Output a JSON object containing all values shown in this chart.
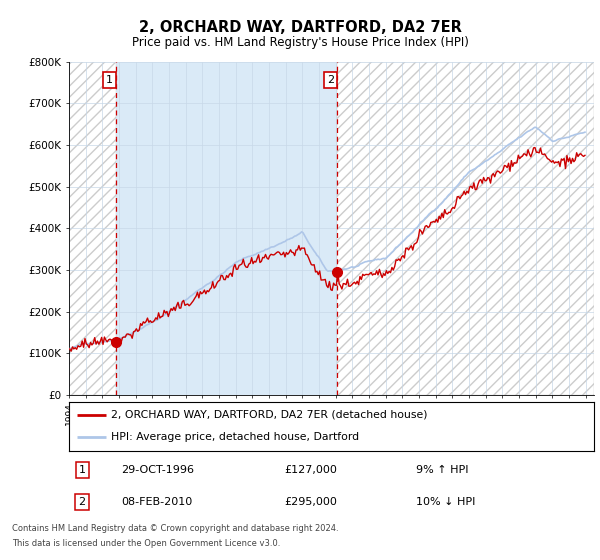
{
  "title": "2, ORCHARD WAY, DARTFORD, DA2 7ER",
  "subtitle": "Price paid vs. HM Land Registry's House Price Index (HPI)",
  "legend_line1": "2, ORCHARD WAY, DARTFORD, DA2 7ER (detached house)",
  "legend_line2": "HPI: Average price, detached house, Dartford",
  "footnote1": "Contains HM Land Registry data © Crown copyright and database right 2024.",
  "footnote2": "This data is licensed under the Open Government Licence v3.0.",
  "sale1_date": "29-OCT-1996",
  "sale1_price": 127000,
  "sale1_label": "9% ↑ HPI",
  "sale2_date": "08-FEB-2010",
  "sale2_price": 295000,
  "sale2_label": "10% ↓ HPI",
  "hpi_color": "#aec6e8",
  "price_color": "#cc0000",
  "dot_color": "#cc0000",
  "vline_color": "#cc0000",
  "shade_color": "#daeaf7",
  "background_color": "#ffffff",
  "grid_color": "#c8d8e8",
  "hatch_color": "#cccccc",
  "ylim": [
    0,
    800000
  ],
  "yticks": [
    0,
    100000,
    200000,
    300000,
    400000,
    500000,
    600000,
    700000,
    800000
  ],
  "xmin": 1994,
  "xmax": 2025.5,
  "sale1_x": 1996.83,
  "sale2_x": 2010.1
}
